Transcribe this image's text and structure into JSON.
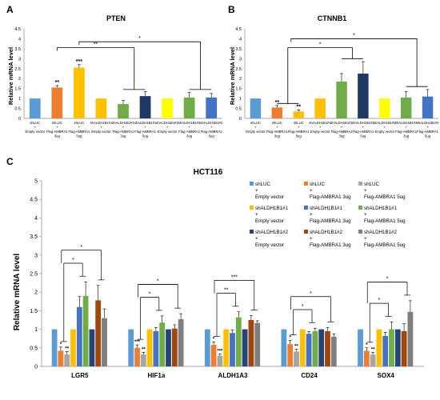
{
  "panels": {
    "a": "A",
    "b": "B",
    "c": "C"
  },
  "legend_labels": [
    [
      "shLUC",
      "+",
      "Empty vector"
    ],
    [
      "shLUC",
      "+",
      "Flag-AMBRA1 3ug"
    ],
    [
      "shLUC",
      "+",
      "Flag-AMBRA1 5ug"
    ],
    [
      "shALDH1B1#1",
      "+",
      "Empty vector"
    ],
    [
      "shALDH1B1#1",
      "+",
      "Flag-AMBRA1 3ug"
    ],
    [
      "shALDH1B1#1",
      "+",
      "Flag-AMBRA1 5ug"
    ],
    [
      "shALDH1B1#2",
      "+",
      "Empty vector"
    ],
    [
      "shALDH1B1#2",
      "+",
      "Flag-AMBRA1 3ug"
    ],
    [
      "shALDH1B1#2",
      "+",
      "Flag-AMBRA1 5ug"
    ]
  ],
  "colors": [
    "#5b9bd5",
    "#ed7d31",
    "#ffc000",
    "#ffc000",
    "#70ad47",
    "#1f3864",
    "#ffff00",
    "#70ad47",
    "#4472c4"
  ],
  "colors_c": [
    "#5b9bd5",
    "#ed7d31",
    "#a5a5a5",
    "#ffc000",
    "#4472c4",
    "#70ad47",
    "#264478",
    "#9e480e",
    "#7f7f7f"
  ],
  "chart_data": [
    {
      "type": "bar",
      "title": "PTEN",
      "ylabel": "Relative mRNA level",
      "ylim": [
        0,
        4.5
      ],
      "yticks": [
        "0",
        "0.5",
        "1",
        "1.5",
        "2",
        "2.5",
        "3",
        "3.5",
        "4",
        "4.5"
      ],
      "categories": [
        "shLUC + Empty vector",
        "shLUC + Flag-AMBRA1 3ug",
        "shLUC + Flag-AMBRA1 5ug",
        "shALDH1B1#1 + Empty vector",
        "shALDH1B1#1 + Flag-AMBRA1 3ug",
        "shALDH1B1#1 + Flag-AMBRA1 5ug",
        "shALDH1B1#2 + Empty vector",
        "shALDH1B1#2 + Flag-AMBRA1 3ug",
        "shALDH1B1#2 + Flag-AMBRA1 5ug"
      ],
      "values": [
        1.0,
        1.55,
        2.55,
        1.0,
        0.72,
        1.12,
        1.0,
        1.05,
        1.05
      ],
      "errors": [
        0,
        0.1,
        0.15,
        0,
        0.18,
        0.22,
        0,
        0.25,
        0.2
      ],
      "stars": [
        "",
        "**",
        "***",
        "",
        "",
        "",
        "",
        "",
        ""
      ],
      "brackets": [
        "**",
        "*"
      ]
    },
    {
      "type": "bar",
      "title": "CTNNB1",
      "ylabel": "Relative mRNA level",
      "ylim": [
        0,
        4.5
      ],
      "yticks": [
        "0",
        "0.5",
        "1",
        "1.5",
        "2",
        "2.5",
        "3",
        "3.5",
        "4",
        "4.5"
      ],
      "categories": [
        "shLUC + Empty vector",
        "shLUC + Flag-AMBRA1 3ug",
        "shLUC + Flag-AMBRA1 5ug",
        "shALDH1B1#1 + Empty vector",
        "shALDH1B1#1 + Flag-AMBRA1 3ug",
        "shALDH1B1#1 + Flag-AMBRA1 5ug",
        "shALDH1B1#2 + Empty vector",
        "shALDH1B1#2 + Flag-AMBRA1 3ug",
        "shALDH1B1#2 + Flag-AMBRA1 5ug"
      ],
      "values": [
        1.0,
        0.55,
        0.35,
        1.0,
        1.85,
        2.25,
        1.0,
        1.05,
        1.1
      ],
      "errors": [
        0,
        0.1,
        0.08,
        0,
        0.4,
        0.6,
        0,
        0.3,
        0.35
      ],
      "stars": [
        "",
        "**",
        "**",
        "",
        "",
        "",
        "",
        "",
        ""
      ],
      "brackets": [
        "*",
        "*"
      ]
    },
    {
      "type": "bar",
      "title": "HCT116",
      "ylabel": "Relative mRNA level",
      "ylim": [
        0,
        5
      ],
      "yticks": [
        "0",
        "0.5",
        "1",
        "1.5",
        "2",
        "2.5",
        "3",
        "3.5",
        "4",
        "4.5",
        "5"
      ],
      "categories": [
        "LGR5",
        "HIF1a",
        "ALDH1A3",
        "CD24",
        "SOX4"
      ],
      "series": [
        {
          "name": "shLUC + Empty vector",
          "values": [
            1.0,
            1.0,
            1.0,
            1.0,
            1.0
          ]
        },
        {
          "name": "shLUC + Flag-AMBRA1 3ug",
          "values": [
            0.42,
            0.5,
            0.58,
            0.6,
            0.42
          ]
        },
        {
          "name": "shLUC + Flag-AMBRA1 5ug",
          "values": [
            0.32,
            0.32,
            0.28,
            0.4,
            0.32
          ]
        },
        {
          "name": "shALDH1B1#1 + Empty vector",
          "values": [
            1.0,
            1.0,
            1.0,
            1.0,
            1.0
          ]
        },
        {
          "name": "shALDH1B1#1 + Flag-AMBRA1 3ug",
          "values": [
            1.6,
            0.95,
            0.9,
            0.88,
            0.82
          ]
        },
        {
          "name": "shALDH1B1#1 + Flag-AMBRA1 5ug",
          "values": [
            1.9,
            1.18,
            1.32,
            0.95,
            1.0
          ]
        },
        {
          "name": "shALDH1B1#2 + Empty vector",
          "values": [
            1.0,
            1.0,
            1.0,
            1.0,
            1.0
          ]
        },
        {
          "name": "shALDH1B1#2 + Flag-AMBRA1 3ug",
          "values": [
            1.78,
            1.02,
            1.25,
            0.95,
            0.95
          ]
        },
        {
          "name": "shALDH1B1#2 + Flag-AMBRA1 5ug",
          "values": [
            1.3,
            1.27,
            1.17,
            0.8,
            1.47
          ]
        }
      ],
      "errors": [
        [
          0,
          0,
          0,
          0,
          0
        ],
        [
          0.1,
          0.08,
          0.08,
          0.1,
          0.08
        ],
        [
          0.08,
          0.06,
          0.05,
          0.06,
          0.06
        ],
        [
          0,
          0,
          0,
          0,
          0
        ],
        [
          0.28,
          0.1,
          0.08,
          0.06,
          0.1
        ],
        [
          0.38,
          0.18,
          0.15,
          0.08,
          0.2
        ],
        [
          0,
          0,
          0,
          0,
          0
        ],
        [
          0.4,
          0.1,
          0.12,
          0.1,
          0.2
        ],
        [
          0.25,
          0.15,
          0.06,
          0.08,
          0.3
        ]
      ],
      "stars_3ug": [
        "*",
        "***",
        "*",
        "*",
        "*"
      ],
      "stars_5ug": [
        "**",
        "**",
        "***",
        "**",
        "**"
      ],
      "brackets": [
        [
          "*",
          "*"
        ],
        [
          "*",
          "*"
        ],
        [
          "**",
          "***"
        ],
        [
          "*",
          "*"
        ],
        [
          "*",
          "*"
        ]
      ]
    }
  ]
}
